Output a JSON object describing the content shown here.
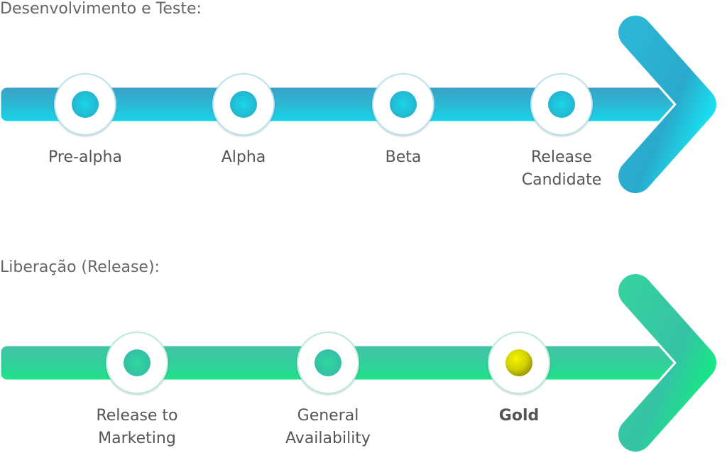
{
  "sections": {
    "development": {
      "title": "Desenvolvimento e Teste:",
      "stages": [
        {
          "label": "Pre-alpha"
        },
        {
          "label": "Alpha"
        },
        {
          "label": "Beta"
        },
        {
          "label": "Release\nCandidate"
        }
      ]
    },
    "release": {
      "title": "Liberação (Release):",
      "stages": [
        {
          "label": "Release to\nMarketing"
        },
        {
          "label": "General\nAvailability"
        },
        {
          "label": "Gold",
          "highlight": true
        }
      ]
    }
  },
  "colors": {
    "dev_bar_top": "#3aa6c9",
    "dev_bar_bottom": "#18d4e8",
    "dev_arrow_tip": "#14f2ff",
    "dev_dot": "#1ccde0",
    "rel_bar_top": "#3cc8ac",
    "rel_bar_bottom": "#22e08a",
    "rel_arrow_tip": "#10f27e",
    "rel_dot": "#2ed3a0",
    "gold_dot": "#d8d800"
  }
}
